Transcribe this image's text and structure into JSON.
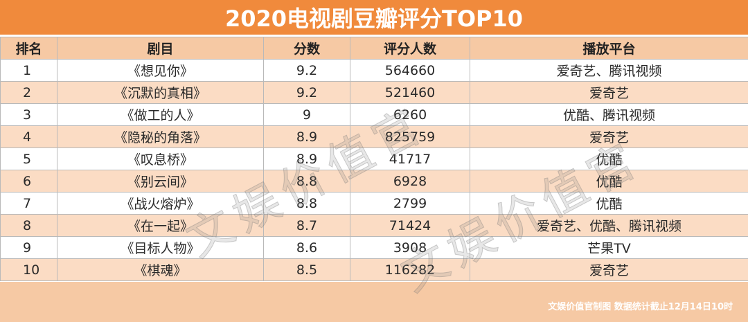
{
  "header": {
    "title": "2020电视剧豆瓣评分TOP10"
  },
  "table": {
    "columns": [
      "排名",
      "剧目",
      "分数",
      "评分人数",
      "播放平台"
    ],
    "rows": [
      {
        "rank": "1",
        "name": "《想见你》",
        "score": "9.2",
        "count": "564660",
        "platform": "爱奇艺、腾讯视频"
      },
      {
        "rank": "2",
        "name": "《沉默的真相》",
        "score": "9.2",
        "count": "521460",
        "platform": "爱奇艺"
      },
      {
        "rank": "3",
        "name": "《做工的人》",
        "score": "9",
        "count": "6260",
        "platform": "优酷、腾讯视频"
      },
      {
        "rank": "4",
        "name": "《隐秘的角落》",
        "score": "8.9",
        "count": "825759",
        "platform": "爱奇艺"
      },
      {
        "rank": "5",
        "name": "《叹息桥》",
        "score": "8.9",
        "count": "41717",
        "platform": "优酷"
      },
      {
        "rank": "6",
        "name": "《别云间》",
        "score": "8.8",
        "count": "6928",
        "platform": "优酷"
      },
      {
        "rank": "7",
        "name": "《战火熔炉》",
        "score": "8.8",
        "count": "2799",
        "platform": "优酷"
      },
      {
        "rank": "8",
        "name": "《在一起》",
        "score": "8.7",
        "count": "71424",
        "platform": "爱奇艺、优酷、腾讯视频"
      },
      {
        "rank": "9",
        "name": "《目标人物》",
        "score": "8.6",
        "count": "3908",
        "platform": "芒果TV"
      },
      {
        "rank": "10",
        "name": "《棋魂》",
        "score": "8.5",
        "count": "116282",
        "platform": "爱奇艺"
      }
    ]
  },
  "footer": {
    "note": "文娱价值官制图 数据统计截止12月14日10时"
  },
  "watermark": {
    "text": "文娱价值官"
  },
  "colors": {
    "header": "#f08a3c",
    "stripe": "#fbdcc4",
    "column_header": "#f6c9a4"
  }
}
